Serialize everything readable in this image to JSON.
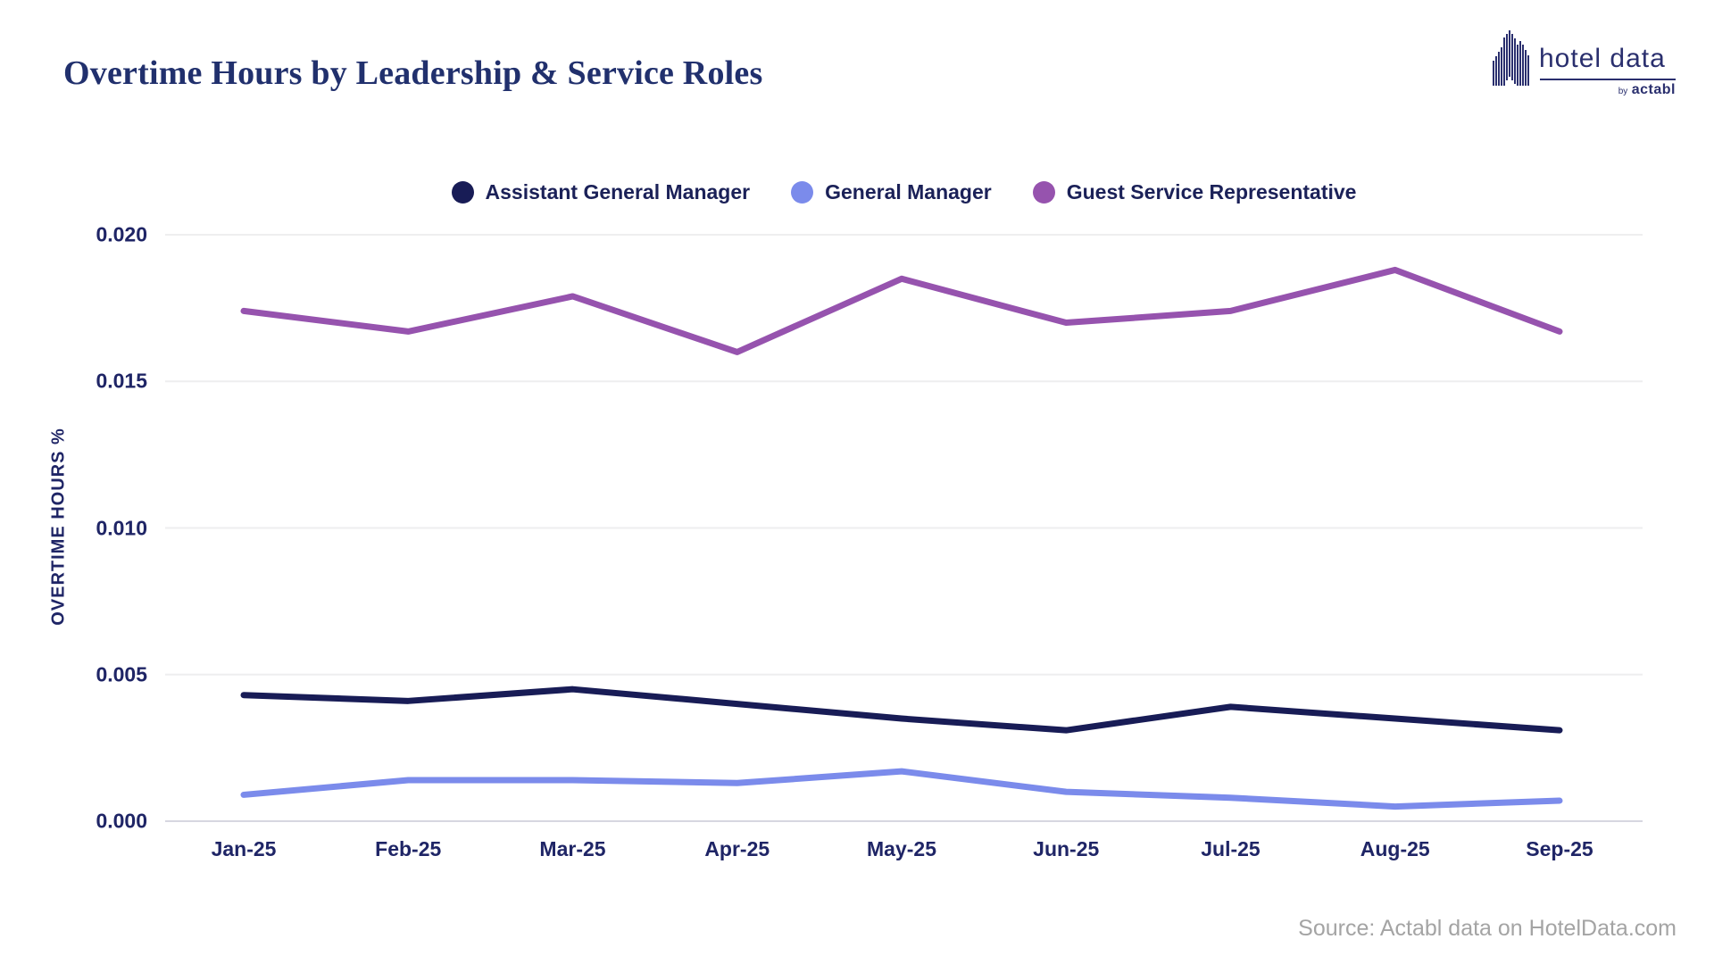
{
  "header": {
    "title": "Overtime Hours by Leadership & Service Roles",
    "logo": {
      "name": "hotel data",
      "by_prefix": "by",
      "by_brand": "actabl"
    }
  },
  "footer": {
    "source": "Source: Actabl data on HotelData.com"
  },
  "colors": {
    "title_text": "#21306d",
    "axis_text": "#1f2566",
    "legend_text": "#1b2158",
    "gridline": "#eeeeef",
    "axis_line": "#d7d7e0",
    "source_text": "#a4a4a4",
    "logo_navy": "#2a2f6e"
  },
  "chart_data": {
    "type": "line",
    "title": "Overtime Hours by Leadership & Service Roles",
    "xlabel": "",
    "ylabel": "OVERTIME HOURS %",
    "categories": [
      "Jan-25",
      "Feb-25",
      "Mar-25",
      "Apr-25",
      "May-25",
      "Jun-25",
      "Jul-25",
      "Aug-25",
      "Sep-25"
    ],
    "ylim": [
      0,
      0.02
    ],
    "y_ticks": [
      0.02,
      0.015,
      0.01,
      0.005,
      0.0
    ],
    "y_tick_labels": [
      "0.020",
      "0.015",
      "0.010",
      "0.005",
      "0.000"
    ],
    "grid": true,
    "legend_position": "top",
    "series": [
      {
        "name": "Assistant General Manager",
        "color": "#181c56",
        "values": [
          0.0043,
          0.0041,
          0.0045,
          0.004,
          0.0035,
          0.0031,
          0.0039,
          0.0035,
          0.0031
        ]
      },
      {
        "name": "General Manager",
        "color": "#7b8beb",
        "values": [
          0.0009,
          0.0014,
          0.0014,
          0.0013,
          0.0017,
          0.001,
          0.0008,
          0.0005,
          0.0007
        ]
      },
      {
        "name": "Guest Service Representative",
        "color": "#9653ae",
        "values": [
          0.0174,
          0.0167,
          0.0179,
          0.016,
          0.0185,
          0.017,
          0.0174,
          0.0188,
          0.0167
        ]
      }
    ]
  }
}
